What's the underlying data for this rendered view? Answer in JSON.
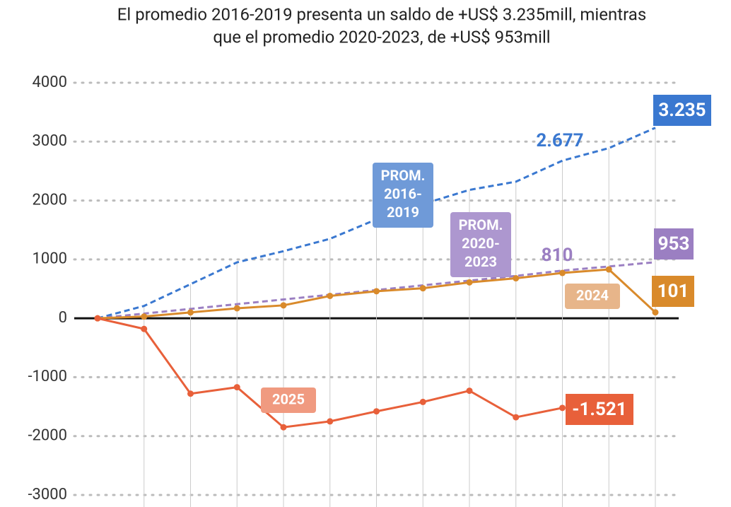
{
  "chart_data": {
    "type": "line",
    "title": [
      "El promedio 2016-2019 presenta un saldo de +US$ 3.235mill, mientras",
      "que el promedio 2020-2023, de +US$ 953mill"
    ],
    "categories": [
      null,
      null,
      null,
      null,
      null,
      null,
      null,
      null,
      null,
      null,
      null,
      null,
      null
    ],
    "ylim": [
      -3000,
      4000
    ],
    "yticks": [
      4000,
      3000,
      2000,
      1000,
      0,
      -1000,
      -2000,
      -3000
    ],
    "grid": true,
    "series": [
      {
        "name": "PROM. 2016-2019",
        "color": "#3a78d0",
        "dashed": true,
        "values": [
          0,
          210,
          580,
          950,
          1140,
          1350,
          1680,
          1940,
          2180,
          2320,
          2677,
          2890,
          3235
        ],
        "value_labels": [
          null,
          null,
          null,
          null,
          null,
          null,
          null,
          null,
          null,
          null,
          "2.677",
          null,
          "3.235"
        ]
      },
      {
        "name": "PROM. 2020-2023",
        "color": "#9b7fc2",
        "dashed": true,
        "values": [
          0,
          80,
          160,
          240,
          320,
          400,
          480,
          560,
          640,
          720,
          810,
          880,
          953
        ]
      },
      {
        "name": "2024",
        "color": "#d98a2b",
        "dashed": false,
        "values": [
          0,
          30,
          100,
          170,
          220,
          380,
          460,
          510,
          610,
          680,
          770,
          830,
          101
        ]
      },
      {
        "name": "2025",
        "color": "#e8603a",
        "dashed": false,
        "values": [
          0,
          -180,
          -1280,
          -1170,
          -1850,
          -1750,
          -1580,
          -1420,
          -1230,
          -1680,
          -1521,
          null,
          null
        ],
        "value_labels": [
          null,
          null,
          null,
          null,
          null,
          null,
          null,
          null,
          null,
          null,
          "-1.521",
          null,
          null
        ]
      }
    ]
  }
}
